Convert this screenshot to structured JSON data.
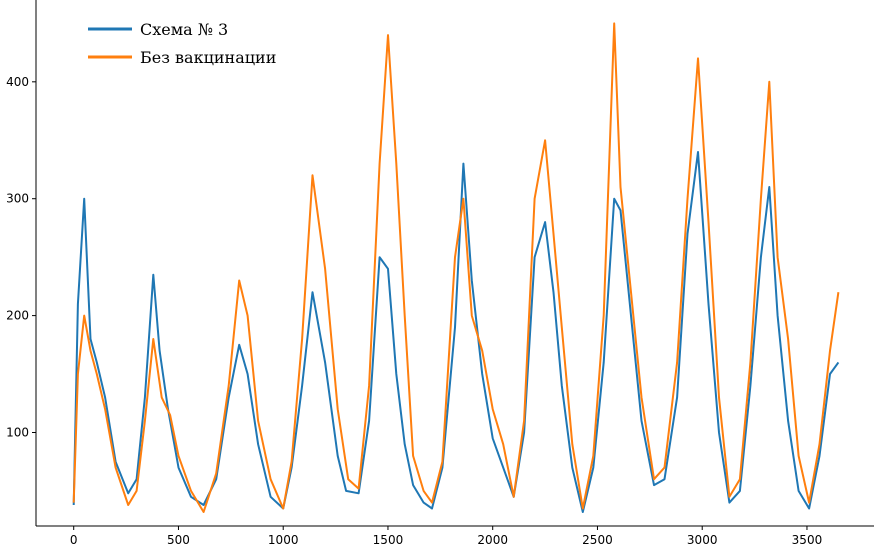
{
  "chart_data": {
    "type": "line",
    "title": "",
    "xlabel": "",
    "ylabel": "",
    "xlim": [
      -180,
      3820
    ],
    "ylim": [
      20,
      470
    ],
    "x_ticks": [
      0,
      500,
      1000,
      1500,
      2000,
      2500,
      3000,
      3500
    ],
    "y_ticks": [
      100,
      200,
      300,
      400
    ],
    "grid": false,
    "legend_position": "top-left",
    "series": [
      {
        "name": "Схема № 3",
        "color": "#1f77b4",
        "x": [
          0,
          20,
          50,
          80,
          110,
          150,
          200,
          260,
          300,
          340,
          380,
          410,
          450,
          500,
          560,
          620,
          680,
          740,
          790,
          830,
          880,
          940,
          1000,
          1040,
          1090,
          1140,
          1200,
          1260,
          1300,
          1360,
          1410,
          1460,
          1500,
          1540,
          1580,
          1620,
          1670,
          1710,
          1760,
          1820,
          1860,
          1900,
          1950,
          2000,
          2050,
          2100,
          2150,
          2200,
          2250,
          2290,
          2330,
          2380,
          2430,
          2480,
          2530,
          2580,
          2610,
          2660,
          2710,
          2770,
          2820,
          2880,
          2930,
          2980,
          3030,
          3080,
          3130,
          3180,
          3230,
          3280,
          3320,
          3360,
          3410,
          3460,
          3510,
          3560,
          3610,
          3650
        ],
        "y": [
          38,
          210,
          300,
          180,
          160,
          130,
          75,
          48,
          60,
          130,
          235,
          170,
          120,
          70,
          45,
          38,
          60,
          130,
          175,
          150,
          90,
          45,
          35,
          70,
          140,
          220,
          160,
          80,
          50,
          48,
          110,
          250,
          240,
          150,
          90,
          55,
          40,
          35,
          70,
          190,
          330,
          230,
          150,
          95,
          70,
          45,
          100,
          250,
          280,
          220,
          140,
          70,
          32,
          70,
          160,
          300,
          290,
          200,
          110,
          55,
          60,
          130,
          270,
          340,
          210,
          100,
          40,
          50,
          140,
          250,
          310,
          200,
          110,
          50,
          35,
          80,
          150,
          160
        ]
      },
      {
        "name": "Без вакцинации",
        "color": "#ff7f0e",
        "x": [
          0,
          20,
          50,
          80,
          110,
          150,
          200,
          260,
          300,
          340,
          380,
          420,
          460,
          500,
          560,
          620,
          680,
          740,
          790,
          830,
          880,
          940,
          1000,
          1040,
          1090,
          1140,
          1200,
          1260,
          1310,
          1360,
          1410,
          1460,
          1500,
          1540,
          1580,
          1620,
          1670,
          1710,
          1760,
          1820,
          1860,
          1900,
          1950,
          2000,
          2050,
          2100,
          2150,
          2200,
          2250,
          2290,
          2330,
          2380,
          2430,
          2480,
          2530,
          2580,
          2610,
          2660,
          2710,
          2770,
          2820,
          2880,
          2930,
          2980,
          3030,
          3080,
          3130,
          3180,
          3230,
          3280,
          3320,
          3360,
          3410,
          3460,
          3510,
          3560,
          3610,
          3650
        ],
        "y": [
          40,
          150,
          200,
          170,
          150,
          120,
          70,
          38,
          50,
          110,
          180,
          130,
          115,
          80,
          50,
          32,
          65,
          140,
          230,
          200,
          110,
          60,
          35,
          75,
          180,
          320,
          240,
          120,
          60,
          52,
          140,
          330,
          440,
          330,
          200,
          80,
          50,
          40,
          75,
          250,
          300,
          200,
          170,
          120,
          90,
          45,
          110,
          300,
          350,
          270,
          190,
          90,
          35,
          80,
          200,
          450,
          310,
          220,
          130,
          60,
          70,
          160,
          300,
          420,
          280,
          130,
          45,
          60,
          160,
          300,
          400,
          250,
          180,
          80,
          40,
          90,
          170,
          220
        ]
      }
    ]
  }
}
